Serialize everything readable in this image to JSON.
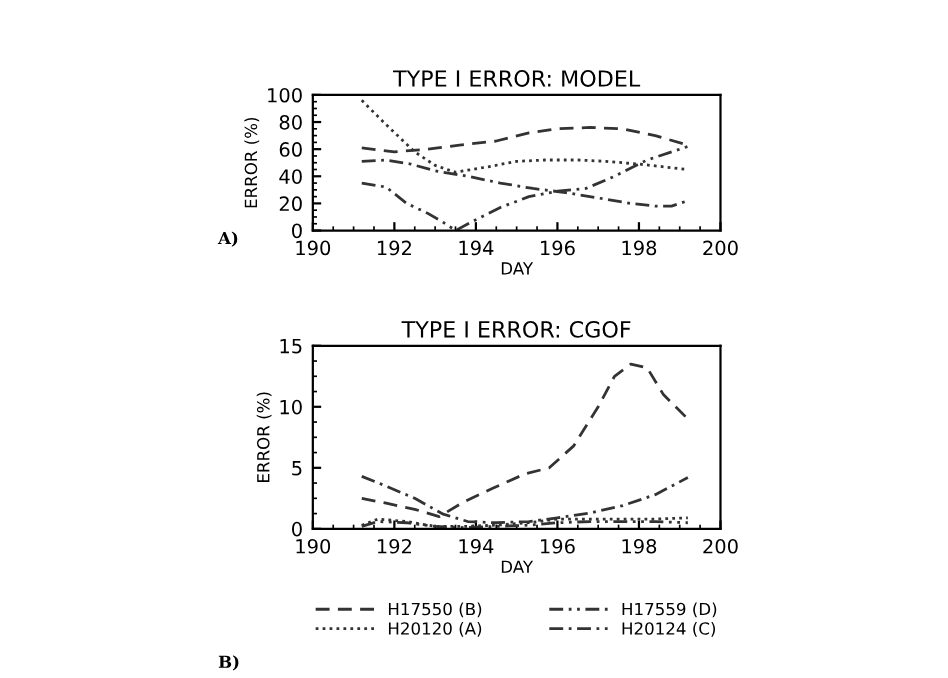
{
  "chart_data": [
    {
      "type": "line",
      "title": "TYPE I ERROR: MODEL",
      "xlabel": "DAY",
      "ylabel": "ERROR (%)",
      "xlim": [
        190,
        200
      ],
      "xticks": [
        190,
        192,
        194,
        196,
        198,
        200
      ],
      "ylim": [
        0,
        100
      ],
      "yticks": [
        0,
        20,
        40,
        60,
        80,
        100
      ],
      "annotations": [
        "A)"
      ],
      "series": [
        {
          "color": "#333333",
          "line_style": "dashed",
          "x": [
            191.2,
            192,
            192.8,
            193.6,
            194.5,
            195.3,
            196,
            196.8,
            197.6,
            198.4,
            199.2
          ],
          "values": [
            61,
            58,
            60,
            63,
            66,
            72,
            75,
            76,
            75,
            70,
            63
          ]
        },
        {
          "color": "#333333",
          "line_style": "dotted",
          "x": [
            191.2,
            191.8,
            192.5,
            193,
            193.5,
            194.3,
            195,
            195.7,
            196.5,
            197.2,
            198,
            198.6,
            199.2
          ],
          "values": [
            96,
            78,
            58,
            48,
            43,
            47,
            51,
            52,
            52,
            51,
            49,
            47,
            45
          ]
        },
        {
          "color": "#333333",
          "line_style": "dashdotdot",
          "x": [
            191.2,
            191.8,
            192.3,
            192.8,
            193.2,
            193.5,
            194,
            194.6,
            195.3,
            196,
            196.7,
            197.4,
            198.2,
            198.8,
            199.2
          ],
          "values": [
            35,
            32,
            20,
            13,
            6,
            0,
            8,
            17,
            25,
            29,
            31,
            40,
            52,
            58,
            62
          ]
        },
        {
          "color": "#333333",
          "line_style": "dashdot",
          "x": [
            191.2,
            191.8,
            192.4,
            193,
            193.8,
            194.6,
            195.4,
            196.2,
            197,
            197.8,
            198.4,
            198.8,
            199.2
          ],
          "values": [
            51,
            52,
            49,
            44,
            40,
            35,
            31,
            28,
            24,
            20,
            18,
            18,
            22
          ]
        }
      ]
    },
    {
      "type": "line",
      "title": "TYPE I ERROR: CGOF",
      "xlabel": "DAY",
      "ylabel": "ERROR (%)",
      "xlim": [
        190,
        200
      ],
      "xticks": [
        190,
        192,
        194,
        196,
        198,
        200
      ],
      "ylim": [
        0,
        15
      ],
      "yticks": [
        0,
        5,
        10,
        15
      ],
      "legend": "bottom",
      "annotations": [
        "B)"
      ],
      "series": [
        {
          "name": "H17550 (B)",
          "color": "#333333",
          "line_style": "dashed",
          "x": [
            191.2,
            191.8,
            192.5,
            193.1,
            193.7,
            194.4,
            195.2,
            195.8,
            196.4,
            197,
            197.4,
            197.8,
            198.2,
            198.6,
            199.2
          ],
          "values": [
            2.5,
            2.1,
            1.6,
            1,
            2.2,
            3.3,
            4.5,
            5,
            6.8,
            10,
            12.5,
            13.5,
            13.2,
            11,
            9
          ]
        },
        {
          "name": "H20120 (A)",
          "color": "#333333",
          "line_style": "dotted",
          "x": [
            191.2,
            191.6,
            192.3,
            193,
            193.7,
            194.5,
            195.3,
            196,
            196.8,
            197.6,
            198.4,
            199.2
          ],
          "values": [
            0.3,
            0.8,
            0.6,
            0.2,
            0.2,
            0.3,
            0.5,
            0.8,
            0.8,
            0.8,
            0.8,
            0.9
          ]
        },
        {
          "name": "H17559 (D)",
          "color": "#333333",
          "line_style": "dashdotdot",
          "x": [
            191.2,
            191.6,
            192.3,
            193,
            193.7,
            194.5,
            195.3,
            196,
            196.8,
            197.6,
            198.4,
            199.2
          ],
          "values": [
            0.2,
            0.6,
            0.5,
            0.2,
            0.1,
            0.2,
            0.3,
            0.5,
            0.6,
            0.6,
            0.6,
            0.5
          ]
        },
        {
          "name": "H20124 (C)",
          "color": "#333333",
          "line_style": "dashdot",
          "x": [
            191.2,
            191.8,
            192.5,
            193.2,
            193.8,
            194.5,
            195.3,
            196,
            196.8,
            197.6,
            198.4,
            199.2
          ],
          "values": [
            4.3,
            3.5,
            2.5,
            1.2,
            0.6,
            0.5,
            0.6,
            0.9,
            1.3,
            1.9,
            2.8,
            4.2
          ]
        }
      ]
    }
  ]
}
